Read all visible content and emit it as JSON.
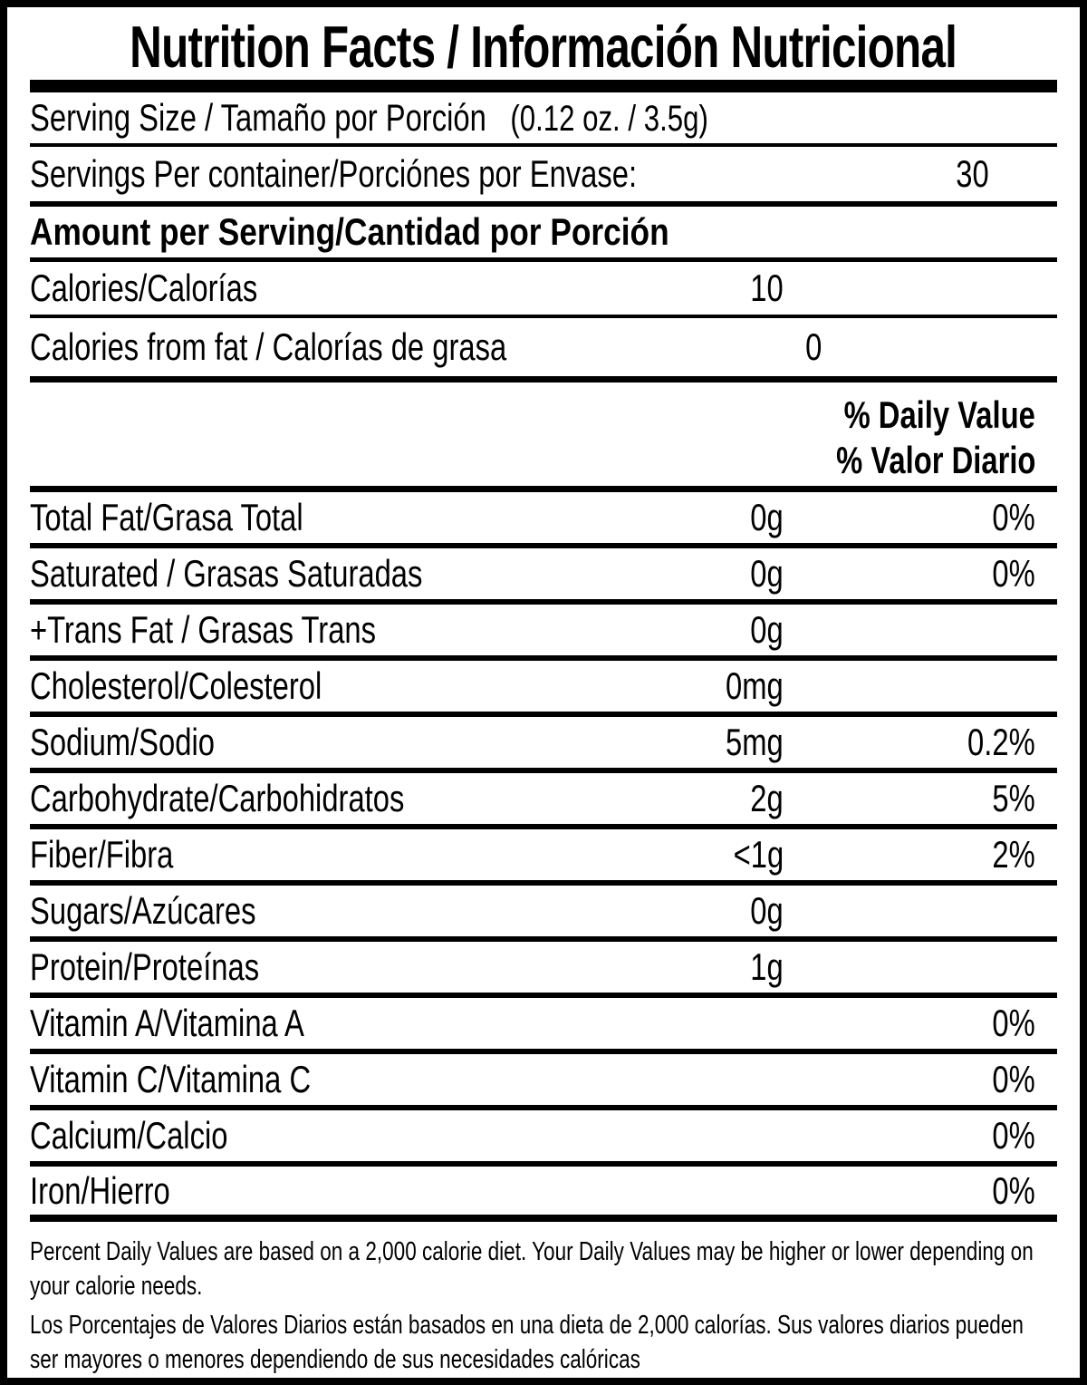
{
  "title": "Nutrition Facts / Información Nutricional",
  "serving_size": {
    "label": "Serving Size / Tamaño por Porción",
    "value": "(0.12 oz. / 3.5g)"
  },
  "servings_per_container": {
    "label": "Servings Per container/Porciónes por Envase:",
    "value": "30"
  },
  "amount_per_serving_heading": "Amount per Serving/Cantidad por Porción",
  "calories": {
    "label": "Calories/Calorías",
    "value": "10"
  },
  "calories_from_fat": {
    "label": "Calories from fat / Calorías de grasa",
    "value": "0"
  },
  "daily_value_header": {
    "en": "% Daily Value",
    "es": "% Valor Diario"
  },
  "nutrients": [
    {
      "label": "Total Fat/Grasa Total",
      "amount": "0g",
      "dv": "0%"
    },
    {
      "label": "Saturated / Grasas Saturadas",
      "amount": "0g",
      "dv": "0%"
    },
    {
      "label": "+Trans Fat / Grasas Trans",
      "amount": "0g",
      "dv": ""
    },
    {
      "label": "Cholesterol/Colesterol",
      "amount": "0mg",
      "dv": ""
    },
    {
      "label": "Sodium/Sodio",
      "amount": "5mg",
      "dv": "0.2%"
    },
    {
      "label": "Carbohydrate/Carbohidratos",
      "amount": "2g",
      "dv": "5%"
    },
    {
      "label": "Fiber/Fibra",
      "amount": "<1g",
      "dv": "2%"
    },
    {
      "label": "Sugars/Azúcares",
      "amount": "0g",
      "dv": ""
    },
    {
      "label": "Protein/Proteínas",
      "amount": "1g",
      "dv": ""
    },
    {
      "label": "Vitamin A/Vitamina A",
      "amount": "",
      "dv": "0%"
    },
    {
      "label": "Vitamin C/Vitamina C",
      "amount": "",
      "dv": "0%"
    },
    {
      "label": "Calcium/Calcio",
      "amount": "",
      "dv": "0%"
    },
    {
      "label": "Iron/Hierro",
      "amount": "",
      "dv": "0%"
    }
  ],
  "footnotes": {
    "en": "Percent Daily Values are based on a 2,000 calorie diet. Your Daily Values may be higher or lower depending on your calorie needs.",
    "es": "Los Porcentajes de Valores Diarios están basados en una dieta de 2,000 calorías. Sus valores diarios pueden ser mayores o menores dependiendo de sus necesidades calóricas"
  },
  "colors": {
    "ink": "#000000",
    "background": "#ffffff"
  }
}
